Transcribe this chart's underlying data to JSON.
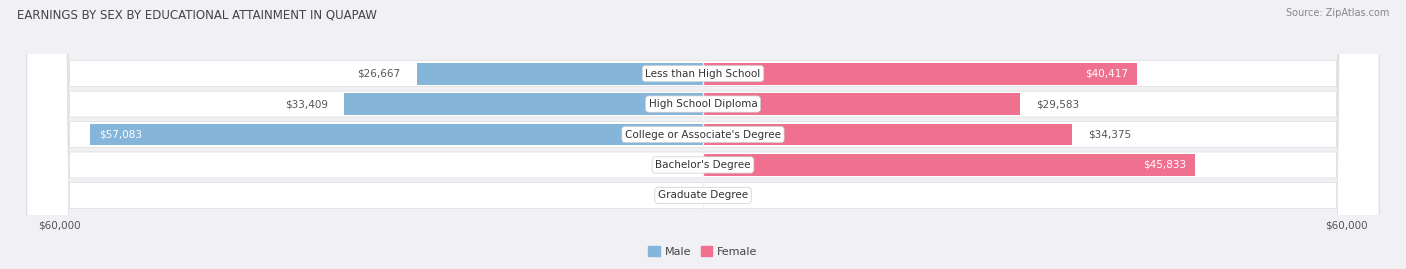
{
  "title": "EARNINGS BY SEX BY EDUCATIONAL ATTAINMENT IN QUAPAW",
  "source": "Source: ZipAtlas.com",
  "categories": [
    "Less than High School",
    "High School Diploma",
    "College or Associate's Degree",
    "Bachelor's Degree",
    "Graduate Degree"
  ],
  "male_values": [
    26667,
    33409,
    57083,
    0,
    0
  ],
  "female_values": [
    40417,
    29583,
    34375,
    45833,
    0
  ],
  "male_color": "#85b5d9",
  "female_color": "#f07090",
  "female_color_light": "#f5b0c5",
  "male_label_color_inside": "#ffffff",
  "male_label_color_outside": "#555555",
  "female_label_color_inside": "#ffffff",
  "female_label_color_outside": "#555555",
  "bar_height": 0.72,
  "bg_bar_height": 0.85,
  "xlim": 60000,
  "background_color": "#f0f0f5",
  "bar_bg_color": "#ffffff",
  "bar_bg_edge_color": "#dddddd",
  "title_fontsize": 8.5,
  "source_fontsize": 7.0,
  "label_fontsize": 7.5,
  "tick_fontsize": 7.5,
  "category_fontsize": 7.5,
  "legend_fontsize": 8.0,
  "male_inside_threshold": 50000,
  "female_inside_threshold": 40000
}
